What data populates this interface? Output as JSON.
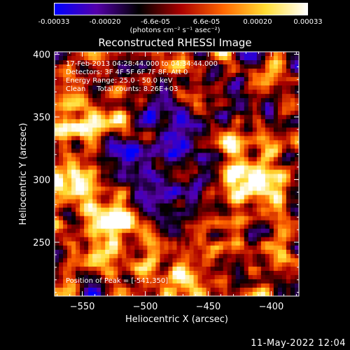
{
  "colorbar": {
    "ticks": [
      "-0.00033",
      "-0.00020",
      "-6.6e-05",
      "6.6e-05",
      "0.00020",
      "0.00033"
    ],
    "tick_values": [
      -0.00033,
      -0.0002,
      -6.6e-05,
      6.6e-05,
      0.0002,
      0.00033
    ],
    "unit": "(photons cm⁻² s⁻¹ asec⁻²)",
    "colors": [
      "#0000ff",
      "#5500aa",
      "#000000",
      "#aa0000",
      "#ff6600",
      "#ffdd33",
      "#ffffff"
    ]
  },
  "chart_data": {
    "type": "heatmap",
    "title": "Reconstructed RHESSI Image",
    "xlabel": "Heliocentric X (arcsec)",
    "ylabel": "Heliocentric Y (arcsec)",
    "xlim": [
      -572,
      -378
    ],
    "ylim": [
      207,
      402
    ],
    "x_ticks": [
      -550,
      -500,
      -450,
      -400
    ],
    "x_tick_labels": [
      "−550",
      "−500",
      "−450",
      "−400"
    ],
    "y_ticks": [
      250,
      300,
      350,
      400
    ],
    "y_tick_labels": [
      "250",
      "300",
      "350",
      "400"
    ],
    "hot_spots": [
      {
        "x": -541,
        "y": 350,
        "level": 1.0
      },
      {
        "x": -412,
        "y": 296,
        "level": 0.95
      },
      {
        "x": -520,
        "y": 267,
        "level": 0.75
      },
      {
        "x": -530,
        "y": 240,
        "level": 0.7
      },
      {
        "x": -430,
        "y": 330,
        "level": 0.65
      },
      {
        "x": -410,
        "y": 235,
        "level": 0.6
      },
      {
        "x": -560,
        "y": 300,
        "level": 0.55
      },
      {
        "x": -470,
        "y": 218,
        "level": 0.6
      },
      {
        "x": -545,
        "y": 285,
        "level": 0.6
      }
    ]
  },
  "info": {
    "time": "17-Feb-2013 04:28:44.000 to 04:34:44.000",
    "detectors": "Detectors: 3F 4F 5F 6F 7F 8F, Att 0",
    "energy": "Energy Range: 25.0 - 50.0 keV",
    "clean": "Clean     Total counts: 8.26E+03",
    "peak": "Position of Peak = [-541,350]"
  },
  "timestamp": "11-May-2022 12:04"
}
